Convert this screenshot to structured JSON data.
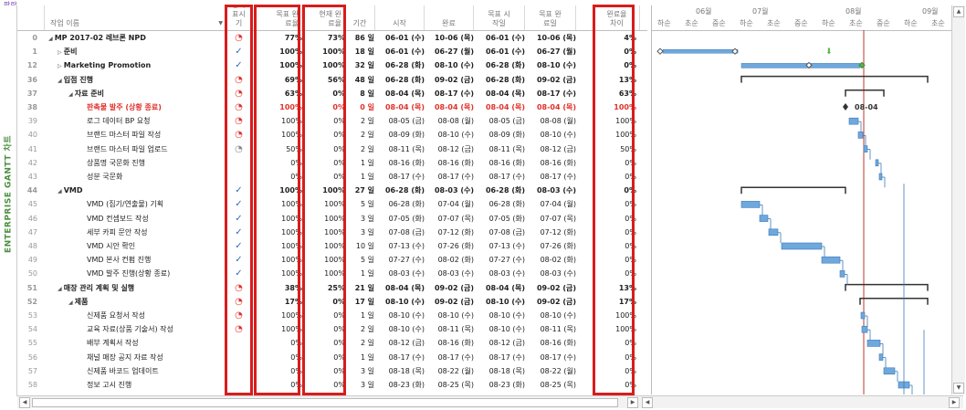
{
  "app": {
    "logo_text": "판란",
    "side_label": "ENTERPRISE GANTT 차트"
  },
  "columns": {
    "name": "작업 이름",
    "status": "상태 표시기",
    "target_pct": "목표 완료율",
    "current_pct": "현재 완료율",
    "duration": "기간",
    "start": "시작",
    "finish": "완료",
    "target_start": "목표 시작일",
    "target_finish": "목표 완료일",
    "gap": "완료율 차이"
  },
  "gantt_header": {
    "months": [
      "06월",
      "07월",
      "08월",
      "09월"
    ],
    "weeks": [
      "하순",
      "초순",
      "중순",
      "하순",
      "초순",
      "중순",
      "하순",
      "초순",
      "중순",
      "하순",
      "초순"
    ],
    "milestone_label": "08-04"
  },
  "rows": [
    {
      "id": "0",
      "indent": 0,
      "name": "MP 2017-02 레브론 NPD",
      "style": "bold",
      "status": "late",
      "target": "77%",
      "current": "73%",
      "dur": "86 일",
      "start": "06-01 (수)",
      "fin": "10-06 (목)",
      "tstart": "06-01 (수)",
      "tfin": "10-06 (목)",
      "gap": "4%"
    },
    {
      "id": "1",
      "indent": 1,
      "name": "준비",
      "style": "bold",
      "status": "done",
      "target": "100%",
      "current": "100%",
      "dur": "18 일",
      "start": "06-01 (수)",
      "fin": "06-27 (월)",
      "tstart": "06-01 (수)",
      "tfin": "06-27 (월)",
      "gap": "0%"
    },
    {
      "id": "12",
      "indent": 1,
      "name": "Marketing Promotion",
      "style": "bold",
      "status": "done",
      "target": "100%",
      "current": "100%",
      "dur": "32 일",
      "start": "06-28 (화)",
      "fin": "08-10 (수)",
      "tstart": "06-28 (화)",
      "tfin": "08-10 (수)",
      "gap": "0%"
    },
    {
      "id": "36",
      "indent": 1,
      "name": "입점 진행",
      "style": "bold",
      "status": "late",
      "target": "69%",
      "current": "56%",
      "dur": "48 일",
      "start": "06-28 (화)",
      "fin": "09-02 (금)",
      "tstart": "06-28 (화)",
      "tfin": "09-02 (금)",
      "gap": "13%"
    },
    {
      "id": "37",
      "indent": 2,
      "name": "자료 준비",
      "style": "bold",
      "status": "late",
      "target": "63%",
      "current": "0%",
      "dur": "8 일",
      "start": "08-04 (목)",
      "fin": "08-17 (수)",
      "tstart": "08-04 (목)",
      "tfin": "08-17 (수)",
      "gap": "63%"
    },
    {
      "id": "38",
      "indent": 3,
      "name": "판촉물 발주 (상황 종료)",
      "style": "red",
      "status": "late",
      "target": "100%",
      "current": "0%",
      "dur": "0 일",
      "start": "08-04 (목)",
      "fin": "08-04 (목)",
      "tstart": "08-04 (목)",
      "tfin": "08-04 (목)",
      "gap": "100%"
    },
    {
      "id": "39",
      "indent": 3,
      "name": "로그 데이터 BP 요청",
      "style": "",
      "status": "late",
      "target": "100%",
      "current": "0%",
      "dur": "2 일",
      "start": "08-05 (금)",
      "fin": "08-08 (월)",
      "tstart": "08-05 (금)",
      "tfin": "08-08 (월)",
      "gap": "100%"
    },
    {
      "id": "40",
      "indent": 3,
      "name": "브랜드 마스터 파일 작성",
      "style": "",
      "status": "late",
      "target": "100%",
      "current": "0%",
      "dur": "2 일",
      "start": "08-09 (화)",
      "fin": "08-10 (수)",
      "tstart": "08-09 (화)",
      "tfin": "08-10 (수)",
      "gap": "100%"
    },
    {
      "id": "41",
      "indent": 3,
      "name": "브랜드 마스터 파일 업로드",
      "style": "",
      "status": "ontrack",
      "target": "50%",
      "current": "0%",
      "dur": "2 일",
      "start": "08-11 (목)",
      "fin": "08-12 (금)",
      "tstart": "08-11 (목)",
      "tfin": "08-12 (금)",
      "gap": "50%"
    },
    {
      "id": "42",
      "indent": 3,
      "name": "상품명 국문화 진행",
      "style": "",
      "status": "",
      "target": "0%",
      "current": "0%",
      "dur": "1 일",
      "start": "08-16 (화)",
      "fin": "08-16 (화)",
      "tstart": "08-16 (화)",
      "tfin": "08-16 (화)",
      "gap": "0%"
    },
    {
      "id": "43",
      "indent": 3,
      "name": "성분 국문화",
      "style": "",
      "status": "",
      "target": "0%",
      "current": "0%",
      "dur": "1 일",
      "start": "08-17 (수)",
      "fin": "08-17 (수)",
      "tstart": "08-17 (수)",
      "tfin": "08-17 (수)",
      "gap": "0%"
    },
    {
      "id": "44",
      "indent": 1,
      "name": "VMD",
      "style": "bold",
      "status": "done",
      "target": "100%",
      "current": "100%",
      "dur": "27 일",
      "start": "06-28 (화)",
      "fin": "08-03 (수)",
      "tstart": "06-28 (화)",
      "tfin": "08-03 (수)",
      "gap": "0%"
    },
    {
      "id": "45",
      "indent": 3,
      "name": "VMD (집기/연출물) 기획",
      "style": "",
      "status": "done",
      "target": "100%",
      "current": "100%",
      "dur": "5 일",
      "start": "06-28 (화)",
      "fin": "07-04 (월)",
      "tstart": "06-28 (화)",
      "tfin": "07-04 (월)",
      "gap": "0%"
    },
    {
      "id": "46",
      "indent": 3,
      "name": "VMD 컨셉보드 작성",
      "style": "",
      "status": "done",
      "target": "100%",
      "current": "100%",
      "dur": "3 일",
      "start": "07-05 (화)",
      "fin": "07-07 (목)",
      "tstart": "07-05 (화)",
      "tfin": "07-07 (목)",
      "gap": "0%"
    },
    {
      "id": "47",
      "indent": 3,
      "name": "세부 카피 문안 작성",
      "style": "",
      "status": "done",
      "target": "100%",
      "current": "100%",
      "dur": "3 일",
      "start": "07-08 (금)",
      "fin": "07-12 (화)",
      "tstart": "07-08 (금)",
      "tfin": "07-12 (화)",
      "gap": "0%"
    },
    {
      "id": "48",
      "indent": 3,
      "name": "VMD 시안 확인",
      "style": "",
      "status": "done",
      "target": "100%",
      "current": "100%",
      "dur": "10 일",
      "start": "07-13 (수)",
      "fin": "07-26 (화)",
      "tstart": "07-13 (수)",
      "tfin": "07-26 (화)",
      "gap": "0%"
    },
    {
      "id": "49",
      "indent": 3,
      "name": "VMD 본사 컨펌 진행",
      "style": "",
      "status": "done",
      "target": "100%",
      "current": "100%",
      "dur": "5 일",
      "start": "07-27 (수)",
      "fin": "08-02 (화)",
      "tstart": "07-27 (수)",
      "tfin": "08-02 (화)",
      "gap": "0%"
    },
    {
      "id": "50",
      "indent": 3,
      "name": "VMD 발주 진행(상황 종료)",
      "style": "",
      "status": "done",
      "target": "100%",
      "current": "100%",
      "dur": "1 일",
      "start": "08-03 (수)",
      "fin": "08-03 (수)",
      "tstart": "08-03 (수)",
      "tfin": "08-03 (수)",
      "gap": "0%"
    },
    {
      "id": "51",
      "indent": 1,
      "name": "매장 관리 계획 및 실행",
      "style": "bold",
      "status": "late",
      "target": "38%",
      "current": "25%",
      "dur": "21 일",
      "start": "08-04 (목)",
      "fin": "09-02 (금)",
      "tstart": "08-04 (목)",
      "tfin": "09-02 (금)",
      "gap": "13%"
    },
    {
      "id": "52",
      "indent": 2,
      "name": "제품",
      "style": "bold",
      "status": "late",
      "target": "17%",
      "current": "0%",
      "dur": "17 일",
      "start": "08-10 (수)",
      "fin": "09-02 (금)",
      "tstart": "08-10 (수)",
      "tfin": "09-02 (금)",
      "gap": "17%"
    },
    {
      "id": "53",
      "indent": 3,
      "name": "신제품 요청서 작성",
      "style": "",
      "status": "late",
      "target": "100%",
      "current": "0%",
      "dur": "1 일",
      "start": "08-10 (수)",
      "fin": "08-10 (수)",
      "tstart": "08-10 (수)",
      "tfin": "08-10 (수)",
      "gap": "100%"
    },
    {
      "id": "54",
      "indent": 3,
      "name": "교육 자료(상품 기술서) 작성",
      "style": "",
      "status": "late",
      "target": "100%",
      "current": "0%",
      "dur": "2 일",
      "start": "08-10 (수)",
      "fin": "08-11 (목)",
      "tstart": "08-10 (수)",
      "tfin": "08-11 (목)",
      "gap": "100%"
    },
    {
      "id": "55",
      "indent": 3,
      "name": "배부 계획서 작성",
      "style": "",
      "status": "",
      "target": "0%",
      "current": "0%",
      "dur": "2 일",
      "start": "08-12 (금)",
      "fin": "08-16 (화)",
      "tstart": "08-12 (금)",
      "tfin": "08-16 (화)",
      "gap": "0%"
    },
    {
      "id": "56",
      "indent": 3,
      "name": "채널 매장 공지 자료 작성",
      "style": "",
      "status": "",
      "target": "0%",
      "current": "0%",
      "dur": "1 일",
      "start": "08-17 (수)",
      "fin": "08-17 (수)",
      "tstart": "08-17 (수)",
      "tfin": "08-17 (수)",
      "gap": "0%"
    },
    {
      "id": "57",
      "indent": 3,
      "name": "신제품 바코드 업데이트",
      "style": "",
      "status": "",
      "target": "0%",
      "current": "0%",
      "dur": "3 일",
      "start": "08-18 (목)",
      "fin": "08-22 (월)",
      "tstart": "08-18 (목)",
      "tfin": "08-22 (월)",
      "gap": "0%"
    },
    {
      "id": "58",
      "indent": 3,
      "name": "정보 고시 진행",
      "style": "",
      "status": "",
      "target": "0%",
      "current": "0%",
      "dur": "3 일",
      "start": "08-23 (화)",
      "fin": "08-25 (목)",
      "tstart": "08-23 (화)",
      "tfin": "08-25 (목)",
      "gap": "0%"
    }
  ]
}
